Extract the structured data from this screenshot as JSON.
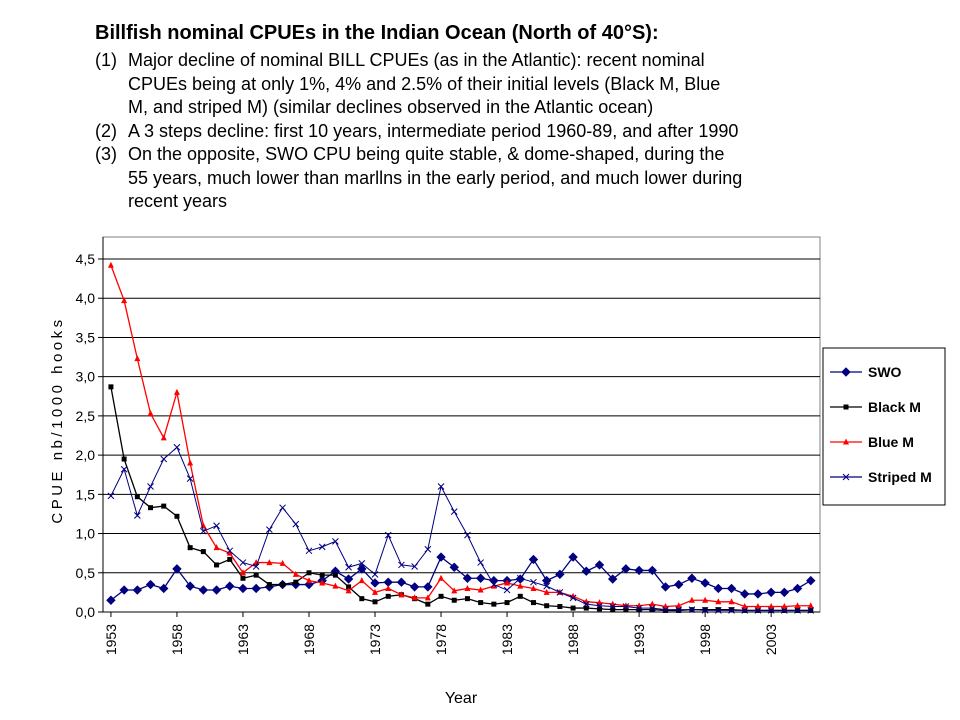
{
  "header": {
    "title": "Billfish nominal CPUEs in the Indian Ocean (North of 40°S):",
    "items": [
      {
        "number": "(1)",
        "lines": [
          "Major  decline of nominal BILL CPUEs (as in the Atlantic): recent nominal",
          "CPUEs being at only 1%, 4% and 2.5% of their initial levels (Black M, Blue",
          "M, and striped M) (similar declines observed in the Atlantic ocean)"
        ]
      },
      {
        "number": "(2)",
        "lines": [
          "A 3 steps decline: first 10 years, intermediate period 1960-89, and after 1990"
        ]
      },
      {
        "number": "(3)",
        "lines": [
          "On the opposite, SWO CPU being quite stable, & dome-shaped, during the",
          "55 years, much lower than marllns in the early period, and much lower during",
          "recent years"
        ]
      }
    ]
  },
  "chart_data": {
    "type": "line",
    "x_label": "Year",
    "y_label": "CPUE nb/1000 hooks",
    "x": [
      1953,
      1954,
      1955,
      1956,
      1957,
      1958,
      1959,
      1960,
      1961,
      1962,
      1963,
      1964,
      1965,
      1966,
      1967,
      1968,
      1969,
      1970,
      1971,
      1972,
      1973,
      1974,
      1975,
      1976,
      1977,
      1978,
      1979,
      1980,
      1981,
      1982,
      1983,
      1984,
      1985,
      1986,
      1987,
      1988,
      1989,
      1990,
      1991,
      1992,
      1993,
      1994,
      1995,
      1996,
      1997,
      1998,
      1999,
      2000,
      2001,
      2002,
      2003,
      2004,
      2005,
      2006
    ],
    "xlim": [
      1952.4,
      2006.7
    ],
    "xticks": [
      1953,
      1958,
      1963,
      1968,
      1973,
      1978,
      1983,
      1988,
      1993,
      1998,
      2003
    ],
    "ylim": [
      0,
      4.5
    ],
    "yticks": [
      {
        "value": 0,
        "label": "0,0"
      },
      {
        "value": 0.5,
        "label": "0,5"
      },
      {
        "value": 1,
        "label": "1,0"
      },
      {
        "value": 1.5,
        "label": "1,5"
      },
      {
        "value": 2,
        "label": "2,0"
      },
      {
        "value": 2.5,
        "label": "2,5"
      },
      {
        "value": 3,
        "label": "3,0"
      },
      {
        "value": 3.5,
        "label": "3,5"
      },
      {
        "value": 4,
        "label": "4,0"
      },
      {
        "value": 4.5,
        "label": "4,5"
      }
    ],
    "grid": true,
    "legend": "right",
    "series": [
      {
        "name": "SWO",
        "color": "#000080",
        "marker": "diamond",
        "values": [
          0.15,
          0.28,
          0.28,
          0.35,
          0.3,
          0.55,
          0.33,
          0.28,
          0.28,
          0.33,
          0.3,
          0.3,
          0.32,
          0.35,
          0.35,
          0.35,
          0.4,
          0.52,
          0.42,
          0.55,
          0.37,
          0.38,
          0.38,
          0.32,
          0.32,
          0.7,
          0.57,
          0.43,
          0.43,
          0.4,
          0.4,
          0.42,
          0.67,
          0.4,
          0.48,
          0.7,
          0.52,
          0.6,
          0.42,
          0.55,
          0.53,
          0.53,
          0.32,
          0.35,
          0.43,
          0.37,
          0.3,
          0.3,
          0.23,
          0.23,
          0.25,
          0.25,
          0.3,
          0.4
        ]
      },
      {
        "name": "Black M",
        "color": "#000000",
        "marker": "square",
        "values": [
          2.87,
          1.95,
          1.47,
          1.33,
          1.35,
          1.22,
          0.82,
          0.77,
          0.6,
          0.67,
          0.43,
          0.47,
          0.35,
          0.35,
          0.38,
          0.5,
          0.47,
          0.47,
          0.32,
          0.17,
          0.13,
          0.2,
          0.22,
          0.17,
          0.1,
          0.2,
          0.15,
          0.17,
          0.12,
          0.1,
          0.12,
          0.2,
          0.12,
          0.08,
          0.07,
          0.05,
          0.05,
          0.04,
          0.03,
          0.03,
          0.03,
          0.03,
          0.02,
          0.02,
          0.03,
          0.03,
          0.03,
          0.03,
          0.02,
          0.02,
          0.02,
          0.02,
          0.02,
          0.02
        ]
      },
      {
        "name": "Blue M",
        "color": "#ff0000",
        "marker": "triangle",
        "values": [
          4.42,
          3.97,
          3.23,
          2.53,
          2.22,
          2.8,
          1.9,
          1.1,
          0.82,
          0.75,
          0.5,
          0.63,
          0.63,
          0.62,
          0.48,
          0.4,
          0.37,
          0.33,
          0.27,
          0.4,
          0.25,
          0.3,
          0.22,
          0.18,
          0.18,
          0.43,
          0.27,
          0.3,
          0.28,
          0.33,
          0.37,
          0.33,
          0.3,
          0.25,
          0.25,
          0.2,
          0.13,
          0.12,
          0.1,
          0.08,
          0.08,
          0.1,
          0.07,
          0.08,
          0.15,
          0.15,
          0.13,
          0.13,
          0.07,
          0.07,
          0.07,
          0.07,
          0.08,
          0.08
        ]
      },
      {
        "name": "Striped M",
        "color": "#000080",
        "marker": "cross",
        "values": [
          1.48,
          1.82,
          1.23,
          1.6,
          1.95,
          2.1,
          1.7,
          1.03,
          1.1,
          0.78,
          0.63,
          0.58,
          1.05,
          1.33,
          1.12,
          0.78,
          0.83,
          0.9,
          0.57,
          0.62,
          0.48,
          0.98,
          0.6,
          0.58,
          0.8,
          1.6,
          1.28,
          0.98,
          0.63,
          0.35,
          0.28,
          0.43,
          0.38,
          0.33,
          0.25,
          0.18,
          0.1,
          0.08,
          0.07,
          0.07,
          0.05,
          0.05,
          0.03,
          0.03,
          0.03,
          0.02,
          0.02,
          0.02,
          0.02,
          0.02,
          0.02,
          0.02,
          0.02,
          0.02
        ]
      }
    ]
  }
}
